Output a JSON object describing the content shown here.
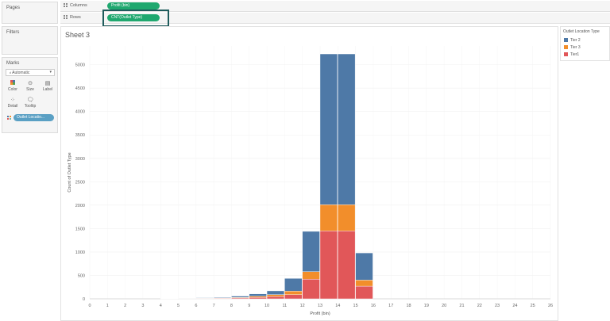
{
  "sidebar": {
    "pages_title": "Pages",
    "filters_title": "Filters",
    "marks_title": "Marks",
    "mark_type": "Automatic",
    "mark_buttons": [
      {
        "label": "Color",
        "icon": "color-icon"
      },
      {
        "label": "Size",
        "icon": "size-icon"
      },
      {
        "label": "Label",
        "icon": "label-icon"
      },
      {
        "label": "Detail",
        "icon": "detail-icon"
      },
      {
        "label": "Tooltip",
        "icon": "tooltip-icon"
      }
    ],
    "color_field": "Outlet Locatio..."
  },
  "shelves": {
    "columns_label": "Columns",
    "columns_pill": "Profit (bin)",
    "rows_label": "Rows",
    "rows_pill": "CNT(Outlet Type)"
  },
  "sheet": {
    "title": "Sheet 3"
  },
  "legend": {
    "title": "Outlet Location Type",
    "items": [
      {
        "label": "Tier 2",
        "color": "#4e79a7"
      },
      {
        "label": "Tier 3",
        "color": "#f28e2b"
      },
      {
        "label": "Tier1",
        "color": "#e15759"
      }
    ]
  },
  "chart_data": {
    "type": "bar",
    "stacked": true,
    "xlabel": "Profit (bin)",
    "ylabel": "Count of Outlet Type",
    "x_ticks": [
      0,
      1,
      2,
      3,
      4,
      5,
      6,
      7,
      8,
      9,
      10,
      11,
      12,
      13,
      14,
      15,
      16,
      17,
      18,
      19,
      20,
      21,
      22,
      23,
      24,
      25,
      26
    ],
    "y_ticks": [
      0,
      500,
      1000,
      1500,
      2000,
      2500,
      3000,
      3500,
      4000,
      4500,
      5000
    ],
    "ylim": [
      0,
      5400
    ],
    "xlim": [
      0,
      26
    ],
    "categories": [
      4,
      5,
      6,
      7,
      8,
      9,
      10,
      11,
      12,
      13,
      14,
      15
    ],
    "series": [
      {
        "name": "Tier1",
        "color": "#e15759",
        "values": [
          2,
          4,
          8,
          10,
          18,
          30,
          50,
          90,
          420,
          1450,
          1450,
          270
        ]
      },
      {
        "name": "Tier 3",
        "color": "#f28e2b",
        "values": [
          1,
          3,
          5,
          8,
          12,
          25,
          40,
          75,
          160,
          560,
          560,
          130
        ]
      },
      {
        "name": "Tier 2",
        "color": "#4e79a7",
        "values": [
          2,
          5,
          10,
          14,
          28,
          50,
          80,
          270,
          860,
          3220,
          3220,
          580
        ]
      }
    ],
    "grid": true
  }
}
